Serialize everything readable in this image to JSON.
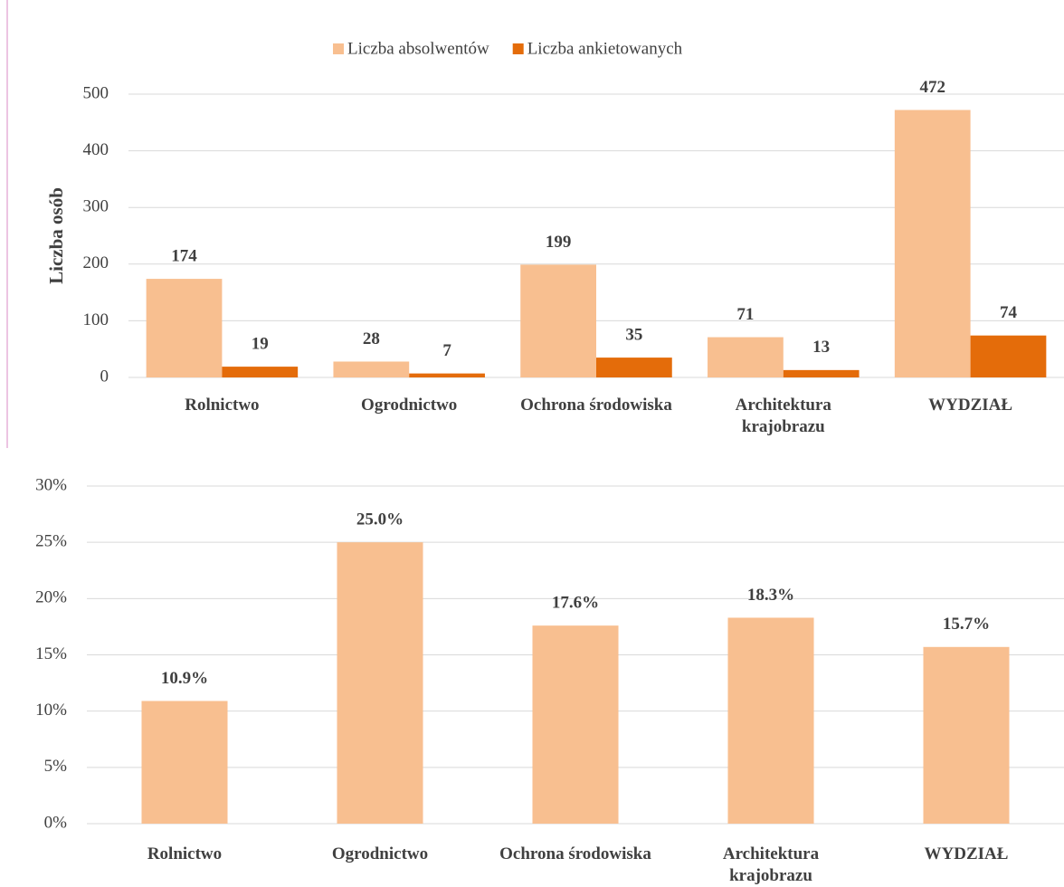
{
  "chart_data": [
    {
      "type": "bar",
      "categories": [
        "Rolnictwo",
        "Ogrodnictwo",
        "Ochrona środowiska",
        "Architektura krajobrazu",
        "WYDZIAŁ"
      ],
      "series": [
        {
          "name": "Liczba absolwentów",
          "color": "#f8bf90",
          "values": [
            174,
            28,
            199,
            71,
            472
          ]
        },
        {
          "name": "Liczba ankietowanych",
          "color": "#e46c0a",
          "values": [
            19,
            7,
            35,
            13,
            74
          ]
        }
      ],
      "y_label": "Liczba osób",
      "ylim": [
        0,
        500
      ],
      "yticks": [
        0,
        100,
        200,
        300,
        400,
        500
      ],
      "grid": true,
      "legend": "top"
    },
    {
      "type": "bar",
      "categories": [
        "Rolnictwo",
        "Ogrodnictwo",
        "Ochrona środowiska",
        "Architektura krajobrazu",
        "WYDZIAŁ"
      ],
      "series": [
        {
          "color": "#f8bf90",
          "values": [
            10.9,
            25.0,
            17.6,
            18.3,
            15.7
          ],
          "value_labels": [
            "10.9%",
            "25.0%",
            "17.6%",
            "18.3%",
            "15.7%"
          ]
        }
      ],
      "ylim": [
        0,
        30
      ],
      "yticks": [
        {
          "value": 0,
          "label": "0%"
        },
        {
          "value": 5,
          "label": "5%"
        },
        {
          "value": 10,
          "label": "10%"
        },
        {
          "value": 15,
          "label": "15%"
        },
        {
          "value": 20,
          "label": "20%"
        },
        {
          "value": 25,
          "label": "25%"
        },
        {
          "value": 30,
          "label": "30%"
        }
      ],
      "grid": true
    }
  ]
}
